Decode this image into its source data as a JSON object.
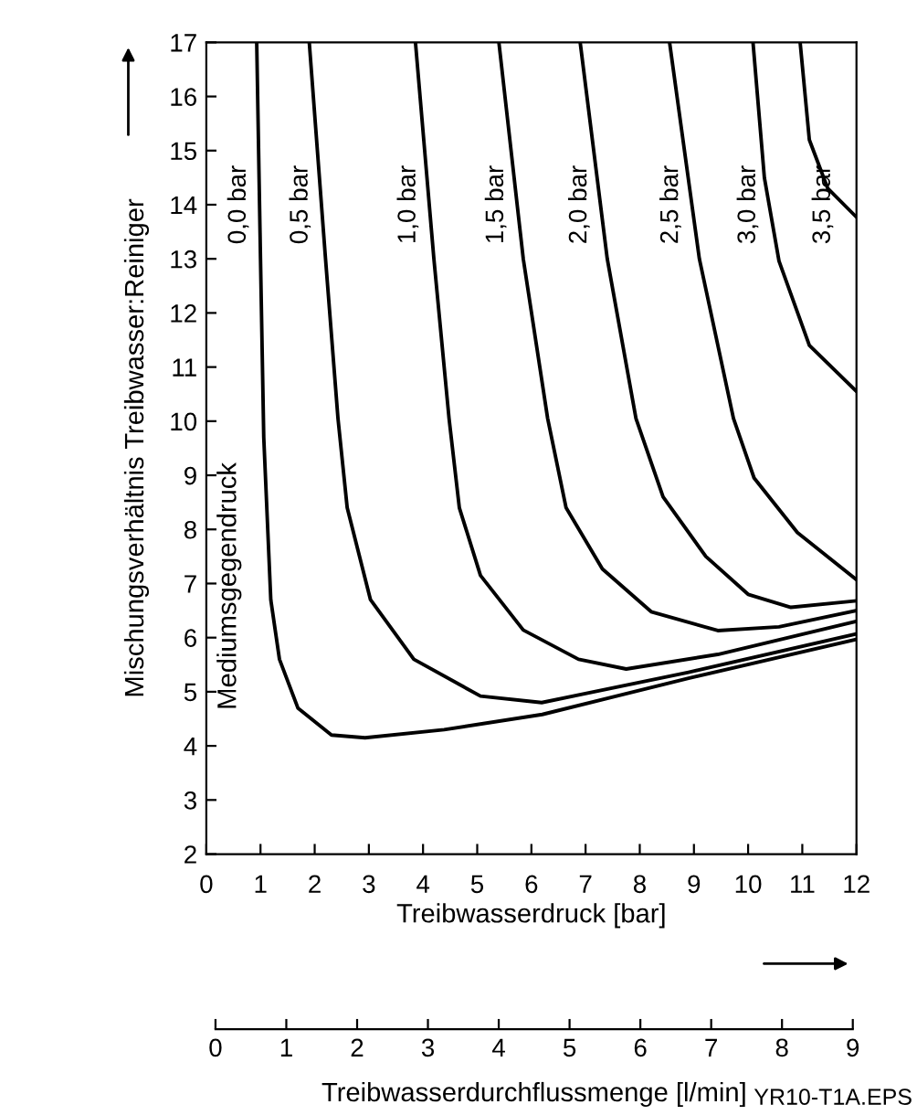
{
  "chart_data": {
    "type": "line",
    "xlabel": "Treibwasserdruck [bar]",
    "ylabel": "Mischungsverhältnis Treibwasser:Reiniger",
    "x2label": "Treibwasserdurchflussmenge [l/min]",
    "xlim": [
      0,
      12
    ],
    "xticks": [
      0,
      1,
      2,
      3,
      4,
      5,
      6,
      7,
      8,
      9,
      10,
      11,
      12
    ],
    "ylim": [
      2,
      17
    ],
    "yticks": [
      2,
      3,
      4,
      5,
      6,
      7,
      8,
      9,
      10,
      11,
      12,
      13,
      14,
      15,
      16,
      17
    ],
    "x2lim": [
      0,
      9
    ],
    "x2ticks": [
      0,
      1,
      2,
      3,
      4,
      5,
      6,
      7,
      8,
      9
    ],
    "grid": false,
    "legend": false,
    "marker": "none",
    "line_style": "solid",
    "annotations": [
      "Mediumsgegendruck",
      "YR10-T1A.EPS"
    ],
    "series": [
      {
        "name": "0,0 bar",
        "color": "#000000",
        "x": [
          0.93,
          1.0,
          1.06,
          1.19,
          1.35,
          1.69,
          2.31,
          2.93,
          4.39,
          6.2,
          8.9,
          12
        ],
        "values": [
          17,
          13,
          9.7,
          6.7,
          5.6,
          4.7,
          4.2,
          4.15,
          4.3,
          4.58,
          5.25,
          5.97
        ]
      },
      {
        "name": "0,5 bar",
        "color": "#000000",
        "x": [
          1.9,
          2.2,
          2.43,
          2.6,
          3.03,
          3.83,
          5.06,
          6.19,
          8.9,
          12
        ],
        "values": [
          17,
          13,
          10.05,
          8.4,
          6.7,
          5.6,
          4.92,
          4.8,
          5.36,
          6.07
        ]
      },
      {
        "name": "1,0 bar",
        "color": "#000000",
        "x": [
          3.86,
          4.2,
          4.48,
          4.67,
          5.06,
          5.85,
          6.87,
          7.75,
          9.44,
          12
        ],
        "values": [
          17,
          13,
          10.05,
          8.4,
          7.15,
          6.14,
          5.6,
          5.42,
          5.69,
          6.3
        ]
      },
      {
        "name": "1,5 bar",
        "color": "#000000",
        "x": [
          5.4,
          5.85,
          6.3,
          6.64,
          7.31,
          8.21,
          9.44,
          10.57,
          12
        ],
        "values": [
          17,
          13,
          10.05,
          8.4,
          7.27,
          6.48,
          6.13,
          6.2,
          6.5
        ]
      },
      {
        "name": "2,0 bar",
        "color": "#000000",
        "x": [
          6.9,
          7.4,
          7.93,
          8.43,
          9.22,
          10.0,
          10.79,
          12
        ],
        "values": [
          17,
          13,
          10.05,
          8.6,
          7.5,
          6.8,
          6.56,
          6.68
        ]
      },
      {
        "name": "2,5 bar",
        "color": "#000000",
        "x": [
          8.55,
          9.1,
          9.73,
          10.11,
          10.91,
          12
        ],
        "values": [
          17,
          13,
          10.05,
          8.95,
          7.94,
          7.07
        ]
      },
      {
        "name": "3,0 bar",
        "color": "#000000",
        "x": [
          10.09,
          10.3,
          10.57,
          11.13,
          12
        ],
        "values": [
          17,
          14.5,
          12.96,
          11.4,
          10.55
        ]
      },
      {
        "name": "3,5 bar",
        "color": "#000000",
        "x": [
          10.96,
          11.13,
          11.47,
          12
        ],
        "values": [
          17,
          15.2,
          14.3,
          13.77
        ]
      }
    ]
  }
}
